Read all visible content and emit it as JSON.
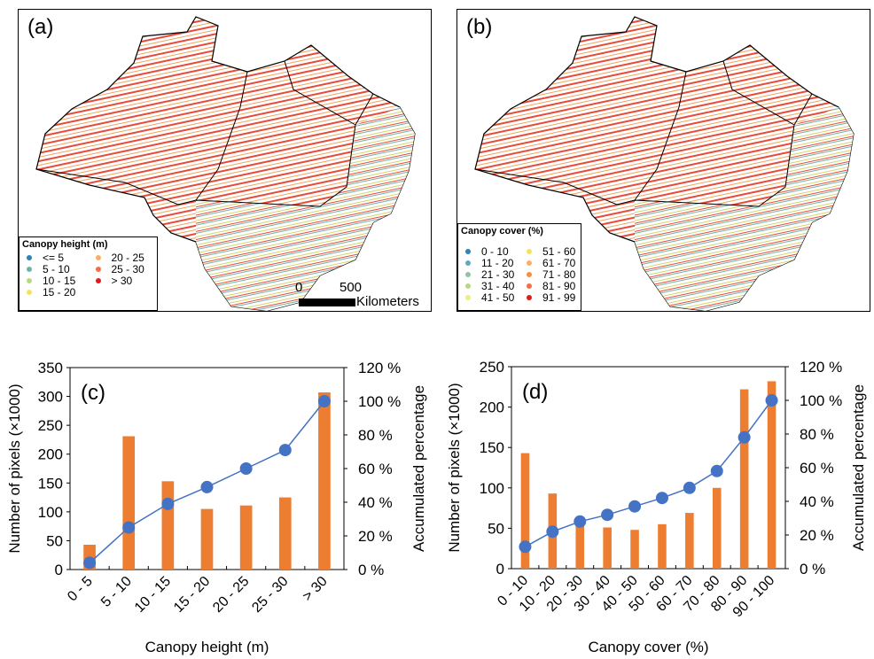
{
  "maps": [
    {
      "label": "(a)",
      "legend_title": "Canopy height (m)",
      "legend_items": [
        {
          "label": "<= 5",
          "color": "#2b83ba"
        },
        {
          "label": "5 - 10",
          "color": "#6fb3a8"
        },
        {
          "label": "10 - 15",
          "color": "#b7d97e"
        },
        {
          "label": "15 - 20",
          "color": "#f5e35a"
        },
        {
          "label": "20 - 25",
          "color": "#fdae61"
        },
        {
          "label": "25 - 30",
          "color": "#f46d43"
        },
        {
          "label": "> 30",
          "color": "#e31a1c"
        }
      ],
      "scale_bar": {
        "start": "0",
        "end": "500",
        "unit": "Kilometers"
      }
    },
    {
      "label": "(b)",
      "legend_title": "Canopy cover (%)",
      "legend_items": [
        {
          "label": "0 - 10",
          "color": "#2b83ba"
        },
        {
          "label": "11 - 20",
          "color": "#5fa8c0"
        },
        {
          "label": "21 - 30",
          "color": "#8fc4a0"
        },
        {
          "label": "31 - 40",
          "color": "#b7d97e"
        },
        {
          "label": "41 - 50",
          "color": "#e6ef80"
        },
        {
          "label": "51 - 60",
          "color": "#f5e35a"
        },
        {
          "label": "61 - 70",
          "color": "#fdae61"
        },
        {
          "label": "71 - 80",
          "color": "#f98e3a"
        },
        {
          "label": "81 - 90",
          "color": "#f46d43"
        },
        {
          "label": "91 - 99",
          "color": "#e31a1c"
        }
      ]
    }
  ],
  "chart_data": [
    {
      "type": "bar",
      "panel_label": "(c)",
      "categories": [
        "0 - 5",
        "5 - 10",
        "10 - 15",
        "15 - 20",
        "20 - 25",
        "25 - 30",
        "> 30"
      ],
      "series": [
        {
          "type": "bar",
          "axis": "left",
          "values": [
            43,
            231,
            153,
            105,
            111,
            125,
            307
          ]
        },
        {
          "type": "line",
          "axis": "right",
          "values": [
            4,
            25,
            39,
            49,
            60,
            71,
            100
          ]
        }
      ],
      "xlabel": "Canopy height (m)",
      "ylabel": "Number of pixels (×1000)",
      "y2label": "Accumulated percentage",
      "ylim": [
        0,
        350
      ],
      "yticks": [
        "0",
        "50",
        "100",
        "150",
        "200",
        "250",
        "300",
        "350"
      ],
      "y2lim": [
        0,
        120
      ],
      "y2ticks": [
        "0 %",
        "20 %",
        "40 %",
        "60 %",
        "80 %",
        "100 %",
        "120 %"
      ],
      "colors": {
        "bar": "#ed7d31",
        "line": "#4472c4"
      },
      "grid": false
    },
    {
      "type": "bar",
      "panel_label": "(d)",
      "categories": [
        "0 - 10",
        "10 - 20",
        "20 - 30",
        "30 - 40",
        "40 - 50",
        "50 - 60",
        "60 - 70",
        "70 - 80",
        "80 - 90",
        "90 - 100"
      ],
      "series": [
        {
          "type": "bar",
          "axis": "left",
          "values": [
            143,
            93,
            63,
            51,
            48,
            55,
            69,
            100,
            222,
            232
          ]
        },
        {
          "type": "line",
          "axis": "right",
          "values": [
            13,
            22,
            28,
            32,
            37,
            42,
            48,
            58,
            78,
            100
          ]
        }
      ],
      "xlabel": "Canopy cover (%)",
      "ylabel": "Number of pixels (×1000)",
      "y2label": "Accumulated percentage",
      "ylim": [
        0,
        250
      ],
      "yticks": [
        "0",
        "50",
        "100",
        "150",
        "200",
        "250"
      ],
      "y2lim": [
        0,
        120
      ],
      "y2ticks": [
        "0 %",
        "20 %",
        "40 %",
        "60 %",
        "80 %",
        "100 %",
        "120 %"
      ],
      "colors": {
        "bar": "#ed7d31",
        "line": "#4472c4"
      },
      "grid": false
    }
  ]
}
